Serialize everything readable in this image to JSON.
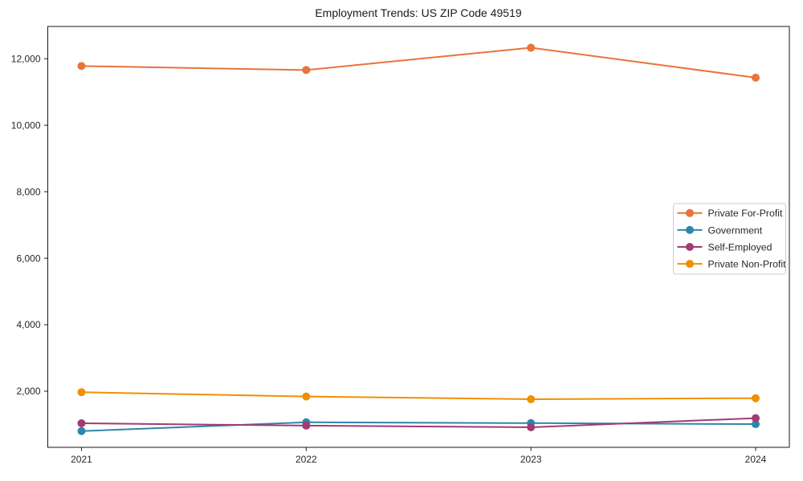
{
  "figure": {
    "background": "#ffffff",
    "text_color": "#262626",
    "spine_color": "#1a1a1a",
    "legend_border_color": "#cccccc"
  },
  "chart_data": {
    "type": "line",
    "title": "Employment Trends: US ZIP Code 49519",
    "xlabel": "",
    "ylabel": "",
    "grid": false,
    "legend_position": "center-right",
    "marker": "circle",
    "x": [
      2021,
      2022,
      2023,
      2024
    ],
    "x_tick_labels": [
      "2021",
      "2022",
      "2023",
      "2024"
    ],
    "y_ticks": [
      2000,
      4000,
      6000,
      8000,
      10000,
      12000
    ],
    "y_tick_labels": [
      "2,000",
      "4,000",
      "6,000",
      "8,000",
      "10,000",
      "12,000"
    ],
    "xlim": [
      2020.85,
      2024.15
    ],
    "ylim": [
      312,
      12970
    ],
    "series": [
      {
        "name": "Private For-Profit",
        "color": "#E8743C",
        "values": [
          11780,
          11660,
          12330,
          11430
        ]
      },
      {
        "name": "Government",
        "color": "#2E86AB",
        "values": [
          800,
          1065,
          1040,
          1010
        ]
      },
      {
        "name": "Self-Employed",
        "color": "#A23B72",
        "values": [
          1035,
          965,
          915,
          1190
        ]
      },
      {
        "name": "Private Non-Profit",
        "color": "#F18F01",
        "values": [
          1970,
          1840,
          1760,
          1790
        ]
      }
    ]
  }
}
